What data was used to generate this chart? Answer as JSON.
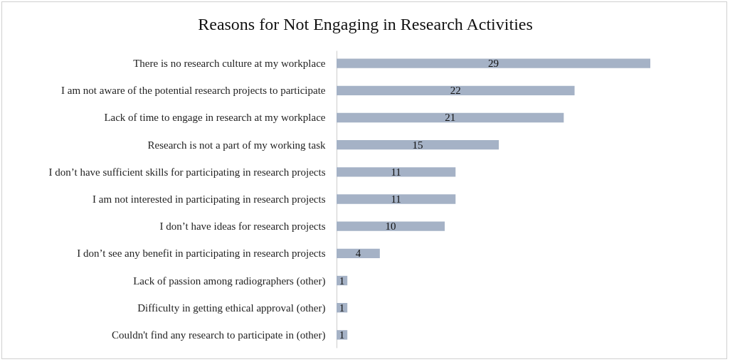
{
  "chart_data": {
    "type": "bar",
    "orientation": "horizontal",
    "title": "Reasons for Not Engaging in Research Activities",
    "categories": [
      "There is no research culture at my workplace",
      "I am not aware of the potential research projects to participate",
      "Lack of time to engage in research at my workplace",
      "Research is not a part of my working task",
      "I don’t have sufficient skills for participating in research projects",
      "I am not interested in participating in research projects",
      "I don’t have ideas for research projects",
      "I don’t see any benefit in participating in research projects",
      "Lack of passion among radiographers (other)",
      "Difficulty in getting ethical approval (other)",
      "Couldn't find any research to participate in (other)"
    ],
    "values": [
      29,
      22,
      21,
      15,
      11,
      11,
      10,
      4,
      1,
      1,
      1
    ],
    "color": "#a5b2c6",
    "data_labels": true
  }
}
